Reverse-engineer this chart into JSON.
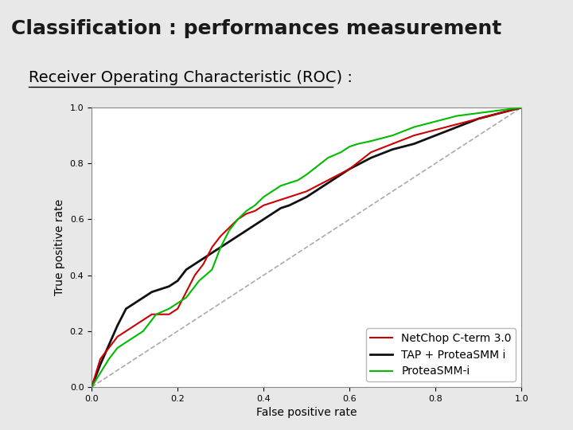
{
  "title": "Classification : performances measurement",
  "subtitle": "Receiver Operating Characteristic (ROC) :",
  "title_bg_color": "#F28030",
  "title_text_color": "#1a1a1a",
  "subtitle_underline": true,
  "xlabel": "False positive rate",
  "ylabel": "True positive rate",
  "xlim": [
    0,
    1
  ],
  "ylim": [
    0,
    1
  ],
  "xticks": [
    0,
    0.2,
    0.4,
    0.6,
    0.8,
    1
  ],
  "yticks": [
    0,
    0.2,
    0.4,
    0.6,
    0.8,
    1
  ],
  "legend_labels": [
    "NetChop C-term 3.0",
    "TAP + ProteaSMM i",
    "ProteaSMM-i"
  ],
  "legend_colors": [
    "#cc0000",
    "#111111",
    "#00bb00"
  ],
  "fig_bg_color": "#e8e8e8",
  "plot_bg_color": "#ffffff",
  "font_size_title": 18,
  "font_size_subtitle": 14,
  "font_size_axis": 10,
  "font_size_legend": 10
}
